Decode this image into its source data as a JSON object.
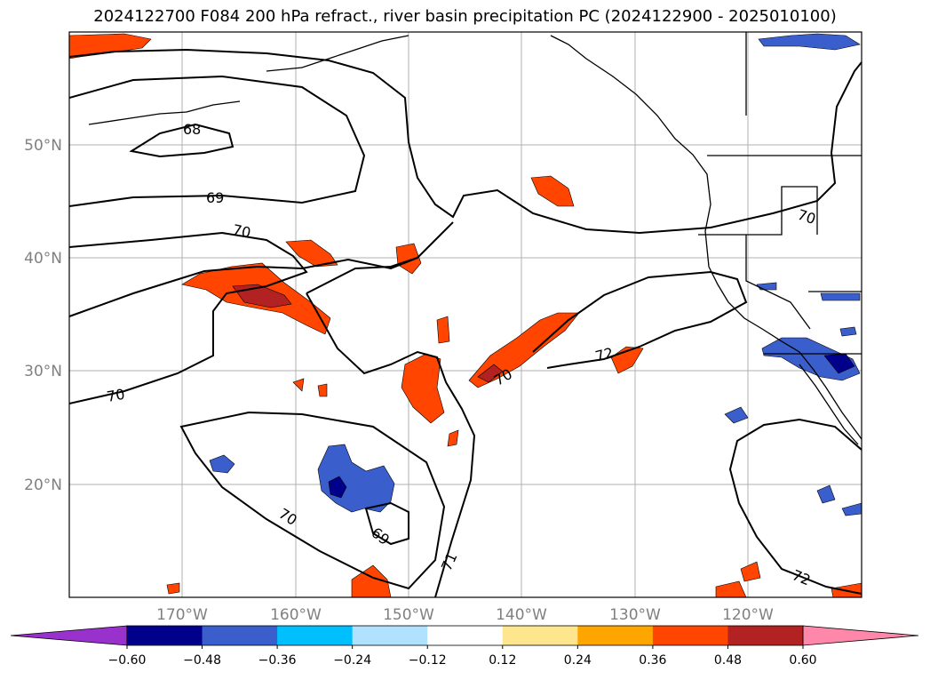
{
  "title": "2024122700 F084 200 hPa refract., river basin precipitation PC (2024122900 - 2025010100)",
  "map": {
    "lat_labels": [
      "50°N",
      "40°N",
      "30°N",
      "20°N"
    ],
    "lon_labels": [
      "170°W",
      "160°W",
      "150°W",
      "140°W",
      "130°W",
      "120°W"
    ],
    "contour_labels": [
      "68",
      "69",
      "70",
      "70",
      "70",
      "72",
      "70",
      "70",
      "69",
      "71",
      "72"
    ]
  },
  "colorbar": {
    "ticks": [
      "−0.60",
      "−0.48",
      "−0.36",
      "−0.24",
      "−0.12",
      "0.12",
      "0.24",
      "0.36",
      "0.48",
      "0.60"
    ],
    "colors": [
      "#9932cc",
      "#00008b",
      "#3a5fcd",
      "#00bfff",
      "#b0e2ff",
      "#ffffff",
      "#fee68e",
      "#ffa500",
      "#ff4500",
      "#b22222",
      "#ff88aa"
    ]
  }
}
